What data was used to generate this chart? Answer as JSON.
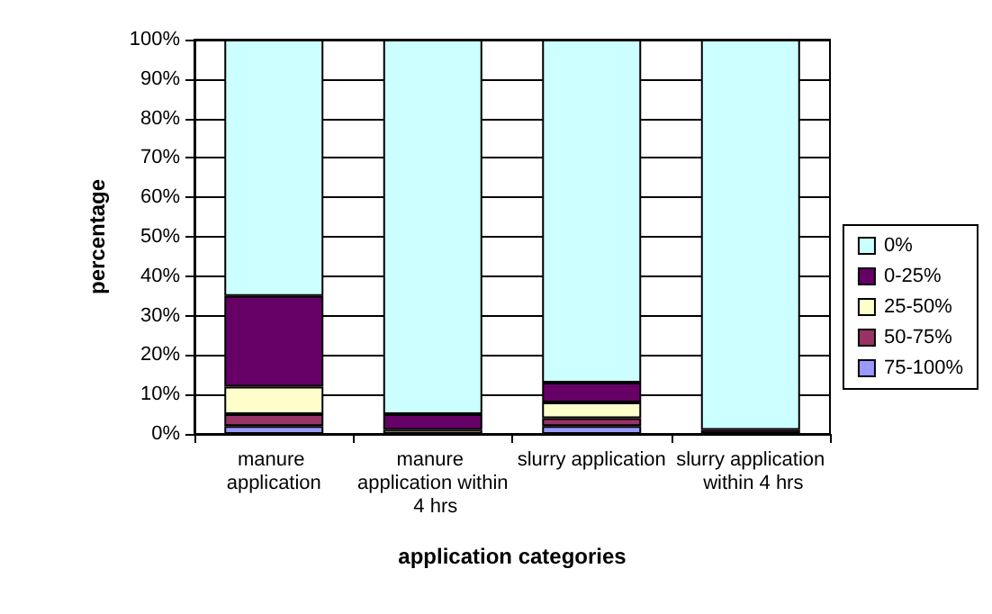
{
  "chart_data": {
    "type": "bar",
    "stacked": true,
    "xlabel": "application categories",
    "ylabel": "percentage",
    "categories": [
      "manure application",
      "manure application within 4 hrs",
      "slurry application",
      "slurry application within 4 hrs"
    ],
    "series": [
      {
        "name": "75-100%",
        "color": "#9999ff",
        "values": [
          2,
          0,
          2,
          0
        ]
      },
      {
        "name": "50-75%",
        "color": "#993366",
        "values": [
          3,
          0,
          2,
          0
        ]
      },
      {
        "name": "25-50%",
        "color": "#ffffcc",
        "values": [
          7,
          1,
          4,
          0
        ]
      },
      {
        "name": "0-25%",
        "color": "#660066",
        "values": [
          23,
          4,
          5,
          1
        ]
      },
      {
        "name": "0%",
        "color": "#ccffff",
        "values": [
          65,
          95,
          87,
          99
        ]
      }
    ],
    "ylim": [
      0,
      100
    ],
    "yticks": [
      {
        "value": 0,
        "label": "0%"
      },
      {
        "value": 10,
        "label": "10%"
      },
      {
        "value": 20,
        "label": "20%"
      },
      {
        "value": 30,
        "label": "30%"
      },
      {
        "value": 40,
        "label": "40%"
      },
      {
        "value": 50,
        "label": "50%"
      },
      {
        "value": 60,
        "label": "60%"
      },
      {
        "value": 70,
        "label": "70%"
      },
      {
        "value": 80,
        "label": "80%"
      },
      {
        "value": 90,
        "label": "90%"
      },
      {
        "value": 100,
        "label": "100%"
      }
    ],
    "grid": "y",
    "legend": "right"
  }
}
